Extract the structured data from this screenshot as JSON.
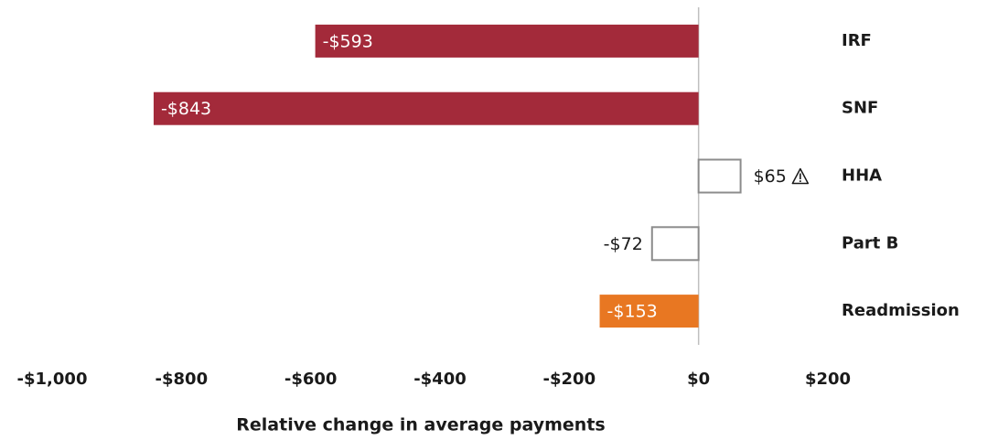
{
  "chart_data": {
    "type": "barh",
    "categories": [
      "IRF",
      "SNF",
      "HHA",
      "Part B",
      "Readmission"
    ],
    "values": [
      -593,
      -843,
      65,
      -72,
      -153
    ],
    "value_labels": [
      "-$593",
      "-$843",
      "$65",
      "-$72",
      "-$153"
    ],
    "colors": [
      "#a32a3a",
      "#a32a3a",
      "none",
      "none",
      "#e87722"
    ],
    "xlim": [
      -1000,
      200
    ],
    "xticks": [
      {
        "value": -1000,
        "label": "-$1,000"
      },
      {
        "value": -800,
        "label": "-$800"
      },
      {
        "value": -600,
        "label": "-$600"
      },
      {
        "value": -400,
        "label": "-$400"
      },
      {
        "value": -200,
        "label": "-$200"
      },
      {
        "value": 0,
        "label": "$0"
      },
      {
        "value": 200,
        "label": "$200"
      }
    ],
    "xlabel": "Relative change in average payments",
    "grid": false
  }
}
